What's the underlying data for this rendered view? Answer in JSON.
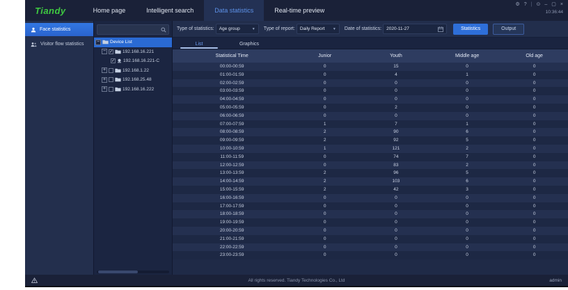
{
  "brand": {
    "logo_text": "Tiandy",
    "logo_color": "#3fca41"
  },
  "header": {
    "nav": [
      {
        "label": "Home page",
        "active": false
      },
      {
        "label": "Intelligent search",
        "active": false
      },
      {
        "label": "Data statistics",
        "active": true
      },
      {
        "label": "Real-time preview",
        "active": false
      }
    ],
    "clock": "10:36:44",
    "window_icons": [
      {
        "name": "settings-icon",
        "glyph": "⚙"
      },
      {
        "name": "help-icon",
        "glyph": "?"
      },
      {
        "name": "divider",
        "glyph": "|"
      },
      {
        "name": "pin-icon",
        "glyph": "⊙"
      },
      {
        "name": "minimize-icon",
        "glyph": "–"
      },
      {
        "name": "restore-icon",
        "glyph": "▢"
      },
      {
        "name": "close-icon",
        "glyph": "×"
      }
    ]
  },
  "sidebar": {
    "items": [
      {
        "label": "Face statistics",
        "icon": "face-statistics-icon",
        "active": true
      },
      {
        "label": "Visitor flow statistics",
        "icon": "visitor-flow-icon",
        "active": false
      }
    ]
  },
  "device_panel": {
    "search": {
      "value": "",
      "placeholder": ""
    },
    "tree": [
      {
        "label": "Device List",
        "level": 0,
        "selected": true,
        "expanded": true,
        "icon": "folder-icon",
        "checkbox": null
      },
      {
        "label": "192.168.16.221",
        "level": 1,
        "selected": false,
        "expanded": true,
        "icon": "folder-icon",
        "checkbox": "checked"
      },
      {
        "label": "192.168.16.221-C",
        "level": 2,
        "selected": false,
        "expanded": null,
        "icon": "camera-icon",
        "checkbox": "checked"
      },
      {
        "label": "192.168.1.22",
        "level": 1,
        "selected": false,
        "expanded": false,
        "icon": "folder-icon",
        "checkbox": "unchecked"
      },
      {
        "label": "192.168.25.48",
        "level": 1,
        "selected": false,
        "expanded": false,
        "icon": "folder-icon",
        "checkbox": "unchecked"
      },
      {
        "label": "192.168.16.222",
        "level": 1,
        "selected": false,
        "expanded": false,
        "icon": "folder-icon",
        "checkbox": "unchecked"
      }
    ]
  },
  "toolbar": {
    "stat_type_label": "Type of statistics:",
    "stat_type_value": "Age group",
    "report_type_label": "Type of report:",
    "report_type_value": "Daily Report",
    "date_label": "Date of statistics:",
    "date_value": "2020-11-27",
    "statistics_button": "Statistics",
    "output_button": "Output"
  },
  "tabs": [
    {
      "label": "List",
      "active": true
    },
    {
      "label": "Graphics",
      "active": false
    }
  ],
  "table": {
    "columns": [
      "Statistical Time",
      "Junior",
      "Youth",
      "Middle age",
      "Old age"
    ],
    "rows": [
      [
        "00:00-00:59",
        "0",
        "15",
        "0",
        "0"
      ],
      [
        "01:00-01:59",
        "0",
        "4",
        "1",
        "0"
      ],
      [
        "02:00-02:59",
        "0",
        "0",
        "0",
        "0"
      ],
      [
        "03:00-03:59",
        "0",
        "0",
        "0",
        "0"
      ],
      [
        "04:00-04:59",
        "0",
        "0",
        "0",
        "0"
      ],
      [
        "05:00-05:59",
        "0",
        "2",
        "0",
        "0"
      ],
      [
        "06:00-06:59",
        "0",
        "0",
        "0",
        "0"
      ],
      [
        "07:00-07:59",
        "1",
        "7",
        "1",
        "0"
      ],
      [
        "08:00-08:59",
        "2",
        "90",
        "6",
        "0"
      ],
      [
        "09:00-09:59",
        "2",
        "92",
        "5",
        "0"
      ],
      [
        "10:00-10:59",
        "1",
        "121",
        "2",
        "0"
      ],
      [
        "11:00-11:59",
        "0",
        "74",
        "7",
        "0"
      ],
      [
        "12:00-12:59",
        "0",
        "83",
        "2",
        "0"
      ],
      [
        "13:00-13:59",
        "2",
        "96",
        "5",
        "0"
      ],
      [
        "14:00-14:59",
        "2",
        "103",
        "6",
        "0"
      ],
      [
        "15:00-15:59",
        "2",
        "42",
        "3",
        "0"
      ],
      [
        "16:00-16:59",
        "0",
        "0",
        "0",
        "0"
      ],
      [
        "17:00-17:59",
        "0",
        "0",
        "0",
        "0"
      ],
      [
        "18:00-18:59",
        "0",
        "0",
        "0",
        "0"
      ],
      [
        "19:00-19:59",
        "0",
        "0",
        "0",
        "0"
      ],
      [
        "20:00-20:59",
        "0",
        "0",
        "0",
        "0"
      ],
      [
        "21:00-21:59",
        "0",
        "0",
        "0",
        "0"
      ],
      [
        "22:00-22:59",
        "0",
        "0",
        "0",
        "0"
      ],
      [
        "23:00-23:59",
        "0",
        "0",
        "0",
        "0"
      ]
    ]
  },
  "footer": {
    "copyright": "All rights reserved. Tiandy Technologies Co., Ltd",
    "user": "admin"
  },
  "colors": {
    "accent_blue": "#2e6fd9",
    "brand_green": "#3fca41",
    "header_bg": "#1a2138",
    "panel_bg": "#1f2a47",
    "table_header_bg": "#2e3c60",
    "row_alt_bg": "#243050",
    "row_bg": "#1d2844",
    "active_nav_text": "#5d91e8",
    "selection_blue": "#2a6ad3"
  }
}
